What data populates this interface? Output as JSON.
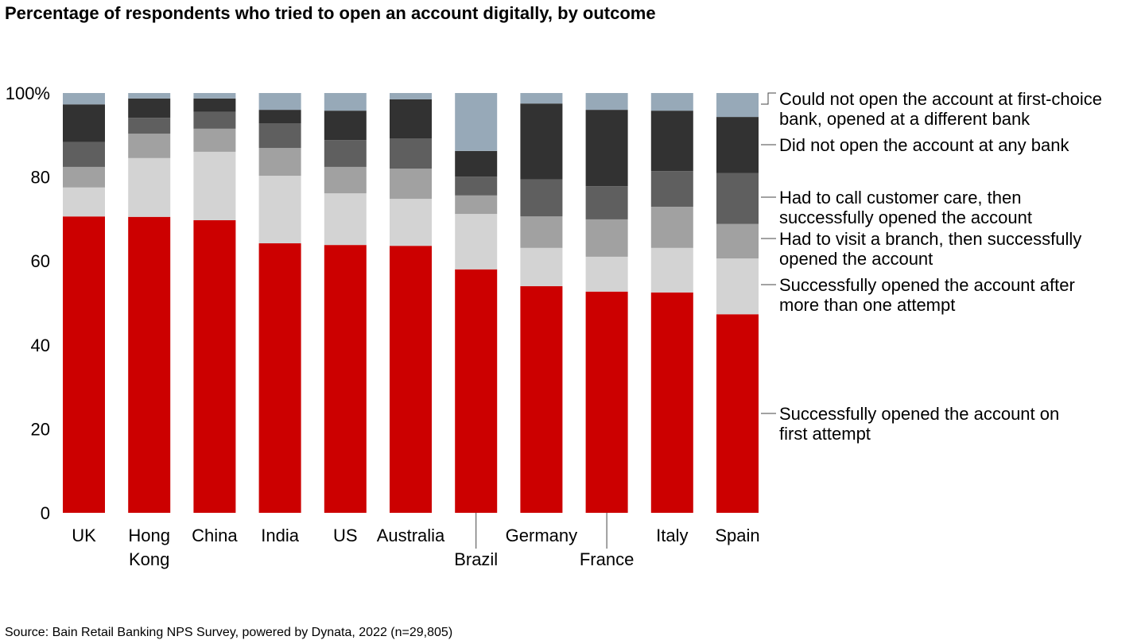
{
  "chart_data": {
    "type": "bar",
    "stacked": true,
    "title": "Percentage of respondents who tried to open an account digitally, by outcome",
    "source": "Source: Bain Retail Banking NPS Survey, powered by Dynata, 2022 (n=29,805)",
    "categories": [
      "UK",
      "Hong Kong",
      "China",
      "India",
      "US",
      "Australia",
      "Brazil",
      "Germany",
      "France",
      "Italy",
      "Spain"
    ],
    "ylim": [
      0,
      100
    ],
    "yticks": [
      "0",
      "20",
      "40",
      "60",
      "80",
      "100%"
    ],
    "grid": false,
    "legend_placement": "right",
    "series": [
      {
        "name": "Successfully opened the account on first attempt",
        "color": "#cc0000",
        "values": [
          70.6,
          70.5,
          69.7,
          64.2,
          63.8,
          63.6,
          58.0,
          54.0,
          52.7,
          52.5,
          47.3
        ]
      },
      {
        "name": "Successfully opened the account after more than one attempt",
        "color": "#d3d3d3",
        "values": [
          6.9,
          14.0,
          16.3,
          16.1,
          12.3,
          11.2,
          13.2,
          9.1,
          8.3,
          10.6,
          13.3
        ]
      },
      {
        "name": "Had to visit a branch, then successfully opened the account",
        "color": "#a1a1a1",
        "values": [
          4.9,
          5.8,
          5.5,
          6.6,
          6.3,
          7.2,
          4.4,
          7.5,
          8.9,
          9.8,
          8.2
        ]
      },
      {
        "name": "Had to call customer care, then successfully opened the account",
        "color": "#5f5f5f",
        "values": [
          5.9,
          3.8,
          4.0,
          5.9,
          6.4,
          7.2,
          4.5,
          8.8,
          7.9,
          8.5,
          12.1
        ]
      },
      {
        "name": "Did not open the account at any bank",
        "color": "#323232",
        "values": [
          9.0,
          4.6,
          3.2,
          3.2,
          7.0,
          9.3,
          6.1,
          18.1,
          18.2,
          14.4,
          13.4
        ]
      },
      {
        "name": "Could not open the account at first-choice bank, opened at a different bank",
        "color": "#97a9b8",
        "values": [
          2.7,
          1.3,
          1.3,
          4.0,
          4.2,
          1.5,
          13.8,
          2.5,
          4.0,
          4.2,
          5.7
        ]
      }
    ]
  }
}
